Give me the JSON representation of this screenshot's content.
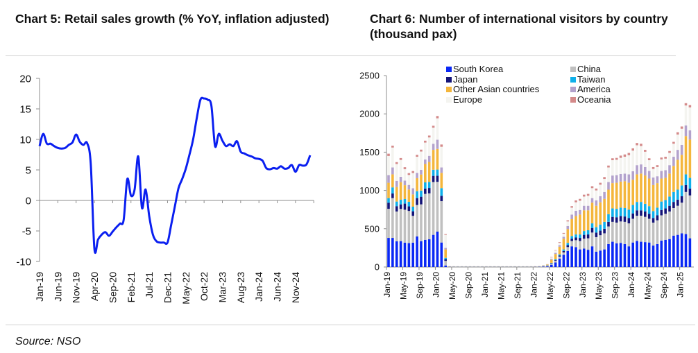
{
  "chart_data": [
    {
      "id": "chart5",
      "type": "line",
      "title": "Chart 5: Retail sales growth (% YoY, inflation adjusted)",
      "xlabel": "",
      "ylabel": "",
      "ylim": [
        -10,
        20
      ],
      "yticks": [
        "20",
        "15",
        "10",
        "5",
        "0",
        "-5",
        "-10"
      ],
      "ytick_values": [
        20,
        15,
        10,
        5,
        0,
        -5,
        -10
      ],
      "xtick_labels": [
        "Jan-19",
        "Jun-19",
        "Nov-19",
        "Apr-20",
        "Sep-20",
        "Feb-21",
        "Jul-21",
        "Dec-21",
        "May-22",
        "Oct-22",
        "Mar-23",
        "Aug-23",
        "Jan-24",
        "Jun-24",
        "Nov-24"
      ],
      "start_month": "Jan-19",
      "grid": false,
      "legend": "none",
      "color": "#0a1ff0",
      "series": [
        {
          "name": "Retail sales growth",
          "values": [
            8.9,
            10.9,
            9.3,
            9.3,
            8.9,
            8.6,
            8.5,
            8.6,
            9.1,
            9.5,
            10.8,
            9.6,
            9.1,
            9.4,
            6.0,
            -7.9,
            -6.4,
            -5.6,
            -5.2,
            -5.8,
            -5.1,
            -4.4,
            -3.8,
            -3.2,
            3.5,
            0.8,
            1.8,
            7.2,
            -1.2,
            1.8,
            -2.6,
            -5.6,
            -6.7,
            -6.9,
            -6.9,
            -6.9,
            -4.0,
            -1.0,
            2.0,
            3.5,
            5.2,
            7.5,
            10.0,
            13.5,
            16.5,
            16.7,
            16.5,
            15.5,
            8.9,
            10.9,
            9.8,
            8.9,
            9.2,
            8.9,
            9.7,
            8.0,
            7.7,
            7.4,
            7.2,
            6.9,
            6.8,
            6.5,
            5.3,
            5.1,
            5.3,
            5.2,
            5.6,
            5.2,
            5.3,
            5.8,
            4.7,
            5.8,
            5.7,
            5.9,
            7.4
          ]
        }
      ]
    },
    {
      "id": "chart6",
      "type": "bar",
      "stacked": true,
      "title": "Chart 6: Number of international visitors by country (thousand pax)",
      "xlabel": "",
      "ylabel": "",
      "ylim": [
        0,
        2500
      ],
      "yticks": [
        "2500",
        "2000",
        "1500",
        "1000",
        "500",
        "0"
      ],
      "ytick_values": [
        2500,
        2000,
        1500,
        1000,
        500,
        0
      ],
      "xtick_labels": [
        "Jan-19",
        "May-19",
        "Sep-19",
        "Jan-20",
        "May-20",
        "Sep-20",
        "Jan-21",
        "May-21",
        "Sep-21",
        "Jan-22",
        "May-22",
        "Sep-22",
        "Jan-23",
        "May-23",
        "Sep-23",
        "Jan-24",
        "May-24",
        "Sep-24",
        "Jan-25"
      ],
      "start_month": "Jan-19",
      "grid": false,
      "legend": "top",
      "series": [
        {
          "name": "South Korea",
          "color": "#0a28f5",
          "values": [
            380,
            380,
            335,
            338,
            318,
            312,
            318,
            400,
            338,
            355,
            362,
            420,
            462,
            320,
            20,
            2,
            1,
            1,
            1,
            1,
            1,
            1,
            1,
            1,
            1,
            1,
            1,
            1,
            1,
            1,
            1,
            1,
            1,
            1,
            1,
            1,
            2,
            3,
            5,
            8,
            30,
            60,
            110,
            160,
            210,
            270,
            260,
            230,
            240,
            225,
            270,
            200,
            215,
            230,
            300,
            330,
            310,
            315,
            300,
            270,
            320,
            340,
            330,
            325,
            320,
            280,
            300,
            345,
            355,
            365,
            410,
            420,
            440,
            430,
            375
          ]
        },
        {
          "name": "China",
          "color": "#c0c0c0",
          "values": [
            380,
            520,
            390,
            420,
            430,
            420,
            350,
            410,
            480,
            600,
            600,
            690,
            650,
            540,
            60,
            2,
            2,
            2,
            2,
            2,
            2,
            2,
            2,
            2,
            2,
            2,
            2,
            2,
            2,
            2,
            2,
            2,
            2,
            2,
            2,
            2,
            2,
            3,
            5,
            8,
            15,
            20,
            25,
            30,
            50,
            70,
            90,
            110,
            130,
            150,
            180,
            190,
            200,
            210,
            230,
            260,
            270,
            280,
            290,
            300,
            310,
            330,
            340,
            330,
            310,
            300,
            310,
            330,
            340,
            360,
            360,
            380,
            400,
            550,
            560
          ]
        },
        {
          "name": "Japan",
          "color": "#141478",
          "values": [
            80,
            60,
            70,
            60,
            80,
            60,
            60,
            90,
            100,
            70,
            70,
            80,
            80,
            70,
            20,
            1,
            1,
            1,
            1,
            1,
            1,
            1,
            1,
            1,
            1,
            1,
            1,
            1,
            1,
            1,
            1,
            1,
            1,
            1,
            1,
            1,
            1,
            1,
            2,
            3,
            5,
            10,
            15,
            20,
            25,
            30,
            35,
            40,
            50,
            50,
            60,
            60,
            60,
            60,
            60,
            65,
            70,
            70,
            70,
            70,
            70,
            70,
            70,
            70,
            65,
            60,
            65,
            70,
            70,
            75,
            80,
            80,
            85,
            90,
            90
          ]
        },
        {
          "name": "Taiwan",
          "color": "#0fb0ea",
          "values": [
            60,
            80,
            60,
            60,
            60,
            60,
            60,
            90,
            80,
            80,
            80,
            80,
            80,
            100,
            20,
            1,
            1,
            1,
            1,
            1,
            1,
            1,
            1,
            1,
            1,
            1,
            1,
            1,
            1,
            1,
            1,
            1,
            1,
            1,
            1,
            1,
            1,
            1,
            2,
            3,
            5,
            10,
            15,
            20,
            30,
            35,
            40,
            45,
            50,
            55,
            60,
            70,
            80,
            90,
            100,
            110,
            110,
            110,
            110,
            110,
            110,
            110,
            110,
            100,
            100,
            90,
            100,
            110,
            110,
            120,
            130,
            130,
            140,
            140,
            140
          ]
        },
        {
          "name": "Other Asian countries",
          "color": "#f4b63c",
          "values": [
            200,
            170,
            190,
            230,
            180,
            160,
            160,
            170,
            210,
            240,
            260,
            260,
            270,
            200,
            110,
            2,
            2,
            2,
            2,
            2,
            2,
            2,
            2,
            2,
            2,
            2,
            2,
            2,
            2,
            2,
            2,
            2,
            2,
            2,
            2,
            2,
            2,
            3,
            5,
            10,
            40,
            70,
            100,
            140,
            180,
            220,
            240,
            260,
            270,
            260,
            270,
            280,
            290,
            300,
            320,
            330,
            340,
            340,
            350,
            350,
            330,
            360,
            370,
            370,
            360,
            340,
            320,
            300,
            290,
            300,
            340,
            390,
            400,
            500,
            500
          ]
        },
        {
          "name": "America",
          "color": "#b3a2cc",
          "values": [
            100,
            90,
            80,
            70,
            60,
            60,
            80,
            70,
            60,
            60,
            80,
            80,
            120,
            70,
            20,
            1,
            1,
            1,
            1,
            1,
            1,
            1,
            1,
            1,
            1,
            1,
            1,
            1,
            1,
            1,
            1,
            1,
            1,
            1,
            1,
            1,
            1,
            1,
            2,
            3,
            10,
            15,
            20,
            25,
            40,
            60,
            70,
            60,
            60,
            60,
            60,
            70,
            80,
            90,
            100,
            100,
            100,
            100,
            100,
            110,
            110,
            120,
            120,
            110,
            100,
            100,
            90,
            100,
            100,
            110,
            120,
            130,
            130,
            140,
            120
          ]
        },
        {
          "name": "Europe",
          "color": "#f4f4f0",
          "values": [
            250,
            260,
            220,
            220,
            150,
            130,
            200,
            210,
            240,
            220,
            240,
            210,
            280,
            270,
            170,
            1,
            1,
            1,
            1,
            1,
            1,
            1,
            1,
            1,
            1,
            1,
            1,
            1,
            1,
            1,
            1,
            1,
            1,
            1,
            1,
            1,
            1,
            2,
            3,
            5,
            20,
            30,
            30,
            40,
            60,
            90,
            110,
            120,
            120,
            130,
            130,
            130,
            150,
            170,
            190,
            200,
            200,
            210,
            220,
            250,
            270,
            260,
            240,
            200,
            140,
            110,
            120,
            150,
            150,
            160,
            170,
            200,
            210,
            260,
            300
          ]
        },
        {
          "name": "Oceania",
          "color": "#d48a8a",
          "values": [
            30,
            25,
            25,
            25,
            25,
            25,
            25,
            25,
            25,
            25,
            25,
            25,
            30,
            30,
            10,
            1,
            1,
            1,
            1,
            1,
            1,
            1,
            1,
            1,
            1,
            1,
            1,
            1,
            1,
            1,
            1,
            1,
            1,
            1,
            1,
            1,
            1,
            1,
            1,
            1,
            5,
            5,
            10,
            10,
            15,
            20,
            25,
            25,
            25,
            25,
            25,
            25,
            25,
            25,
            25,
            25,
            25,
            30,
            30,
            30,
            30,
            30,
            30,
            25,
            25,
            25,
            25,
            25,
            25,
            25,
            25,
            30,
            30,
            30,
            30
          ]
        }
      ]
    }
  ],
  "page": {
    "chart5_title": "Chart 5: Retail sales growth (% YoY, inflation adjusted)",
    "chart6_title": "Chart 6: Number of international visitors by country (thousand pax)",
    "source": "Source: NSO"
  }
}
